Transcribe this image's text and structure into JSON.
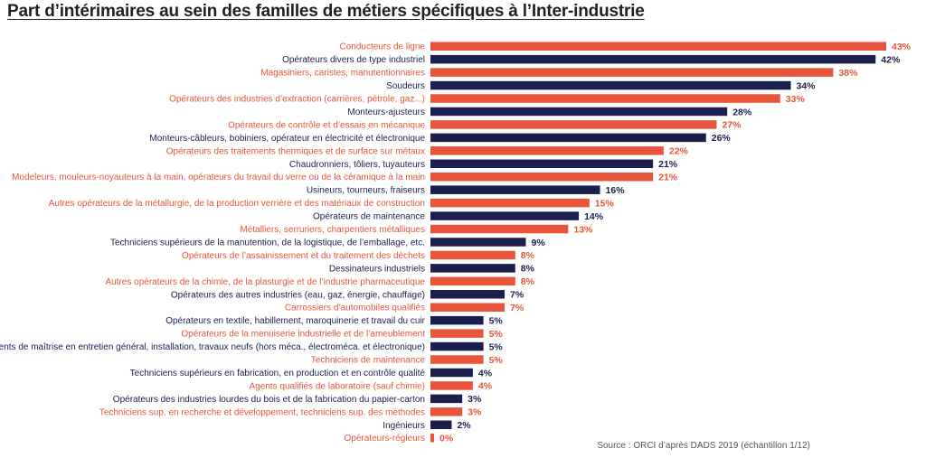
{
  "title": "Part d’intérimaires au sein des familles de métiers spécifiques à l’Inter-industrie",
  "source": "Source : ORCI d’après DADS 2019 (échantillon 1/12)",
  "colors": {
    "orange": "#E8553A",
    "navy": "#1B1F4E"
  },
  "chart_data": {
    "type": "bar",
    "orientation": "horizontal",
    "unit": "%",
    "xlim": [
      0,
      43
    ],
    "grid": false,
    "legend": "none",
    "categories": [
      "Conducteurs de ligne",
      "Opérateurs divers de type industriel",
      "Magasiniers, caristes, manutentionnaires",
      "Soudeurs",
      "Opérateurs des industries d’extraction (carrières, pétrole, gaz...)",
      "Monteurs-ajusteurs",
      "Opérateurs de contrôle et d’essais en mécanique",
      "Monteurs-câbleurs, bobiniers, opérateur en électricité et électronique",
      "Opérateurs des traitements thermiques et de surface sur métaux",
      "Chaudronniers, tôliers, tuyauteurs",
      "Modeleurs, mouleurs-noyauteurs à la main, opérateurs du travail du verre ou de la céramique à la main",
      "Usineurs, tourneurs, fraiseurs",
      "Autres opérateurs de la métallurgie, de la production verrière et des matériaux de construction",
      "Opérateurs de maintenance",
      "Métalliers, serruriers, charpentiers métalliques",
      "Techniciens supérieurs de la manutention, de la logistique, de l’emballage, etc.",
      "Opérateurs de l’assainissement et du traitement des déchets",
      "Dessinateurs industriels",
      "Autres opérateurs de la chimie, de la plasturgie et de l’industrie pharmaceutique",
      "Opérateurs des autres industries (eau, gaz, énergie, chauffage)",
      "Carrossiers d’automobiles qualifiés",
      "Opérateurs en textile, habillement, maroquinerie et travail du cuir",
      "Opérateurs de la menuiserie industrielle et de l’ameublement",
      "Agents de maîtrise en entretien général, installation, travaux neufs (hors méca., électroméca. et électronique)",
      "Techniciens de maintenance",
      "Techniciens supérieurs en fabrication, en production et en contrôle qualité",
      "Agents qualifiés de laboratoire (sauf chimie)",
      "Opérateurs des industries lourdes du bois et de la fabrication du papier-carton",
      "Techniciens sup. en recherche et développement, techniciens sup. des méthodes",
      "Ingénieurs",
      "Opérateurs-régleurs"
    ],
    "values": [
      43,
      42,
      38,
      34,
      33,
      28,
      27,
      26,
      22,
      21,
      21,
      16,
      15,
      14,
      13,
      9,
      8,
      8,
      8,
      7,
      7,
      5,
      5,
      5,
      5,
      4,
      4,
      3,
      3,
      2,
      0
    ],
    "value_labels": [
      "43%",
      "42%",
      "38%",
      "34%",
      "33%",
      "28%",
      "27%",
      "26%",
      "22%",
      "21%",
      "21%",
      "16%",
      "15%",
      "14%",
      "13%",
      "9%",
      "8%",
      "8%",
      "8%",
      "7%",
      "7%",
      "5%",
      "5%",
      "5%",
      "5%",
      "4%",
      "4%",
      "3%",
      "3%",
      "2%",
      "0%"
    ],
    "bar_colors": [
      "orange",
      "navy",
      "orange",
      "navy",
      "orange",
      "navy",
      "orange",
      "navy",
      "orange",
      "navy",
      "orange",
      "navy",
      "orange",
      "navy",
      "orange",
      "navy",
      "orange",
      "navy",
      "orange",
      "navy",
      "orange",
      "navy",
      "orange",
      "navy",
      "orange",
      "navy",
      "orange",
      "navy",
      "orange",
      "navy",
      "orange"
    ]
  }
}
